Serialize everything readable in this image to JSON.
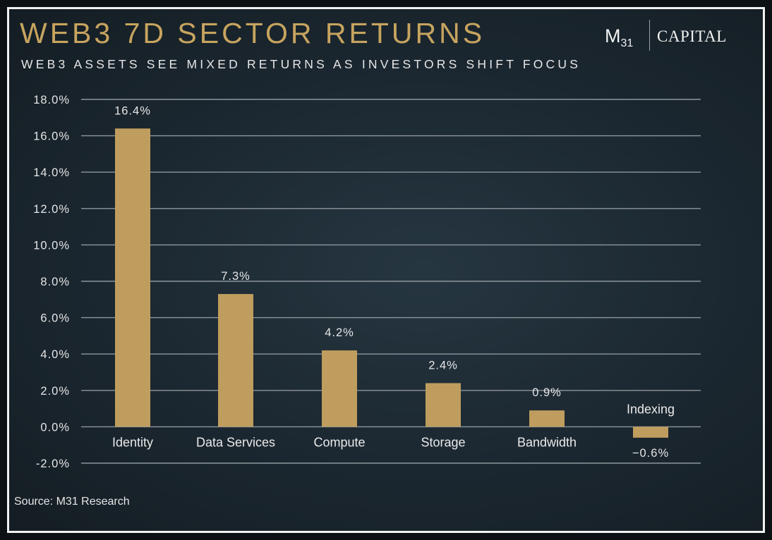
{
  "header": {
    "title": "WEB3 7D SECTOR RETURNS",
    "subtitle": "WEB3 ASSETS SEE MIXED RETURNS AS INVESTORS SHIFT FOCUS"
  },
  "brand": {
    "logo_main": "M",
    "logo_sub": "31",
    "logo_word": "CAPITAL"
  },
  "footer": {
    "source": "Source: M31 Research"
  },
  "colors": {
    "bar": "#bf9d5e",
    "title": "#c7a45f",
    "grid": "#8e969c"
  },
  "chart_data": {
    "type": "bar",
    "title": "WEB3 7D SECTOR RETURNS",
    "subtitle": "WEB3 ASSETS SEE MIXED RETURNS AS INVESTORS SHIFT FOCUS",
    "categories": [
      "Identity",
      "Data Services",
      "Compute",
      "Storage",
      "Bandwidth",
      "Indexing"
    ],
    "values": [
      16.4,
      7.3,
      4.2,
      2.4,
      0.9,
      -0.6
    ],
    "data_labels": [
      "16.4%",
      "7.3%",
      "4.2%",
      "2.4%",
      "0.9%",
      "-0.6%"
    ],
    "ylim": [
      -2.0,
      18.0
    ],
    "yticks": [
      18.0,
      16.0,
      14.0,
      12.0,
      10.0,
      8.0,
      6.0,
      4.0,
      2.0,
      0.0,
      -2.0
    ],
    "ytick_labels": [
      "18.0%",
      "16.0%",
      "14.0%",
      "12.0%",
      "10.0%",
      "8.0%",
      "6.0%",
      "4.0%",
      "2.0%",
      "0.0%",
      "-2.0%"
    ],
    "xlabel": "",
    "ylabel": "",
    "grid": true,
    "legend": "none"
  }
}
